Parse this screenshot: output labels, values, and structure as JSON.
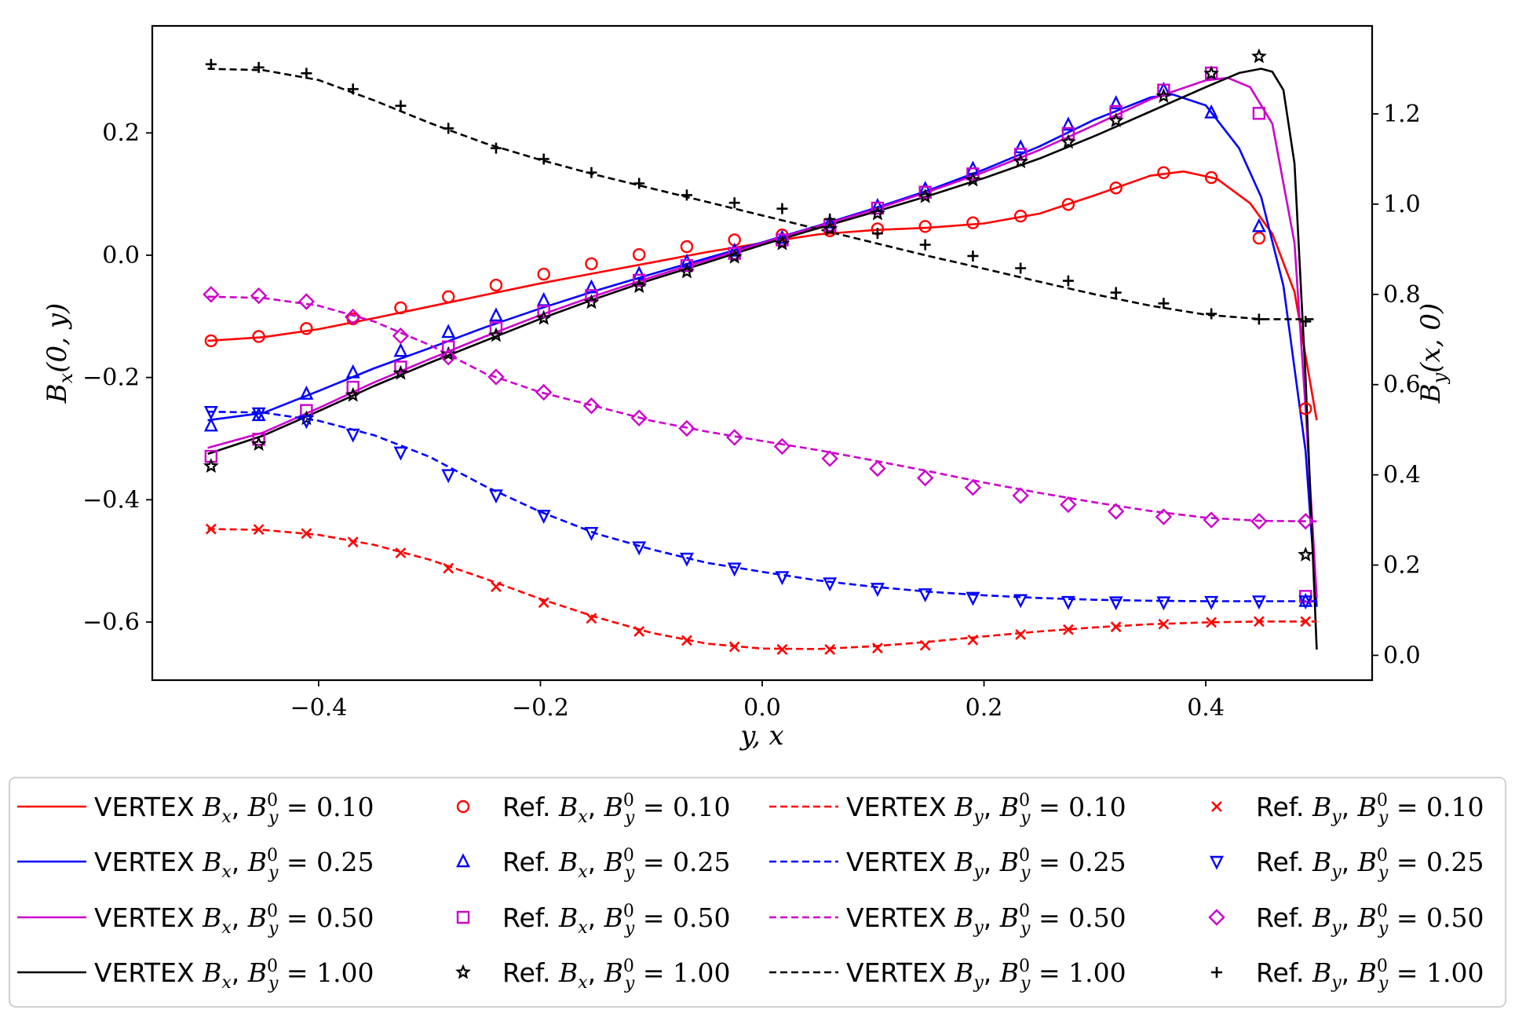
{
  "chart_data": {
    "type": "line",
    "xlabel": "y, x",
    "ylabel_left": "B_x(0, y)",
    "ylabel_right": "B_y(x, 0)",
    "xlim": [
      -0.55,
      0.55
    ],
    "ylim_left": [
      -0.695,
      0.375
    ],
    "ylim_right": [
      -0.055,
      1.395
    ],
    "xticks": [
      -0.4,
      -0.2,
      0.0,
      0.2,
      0.4
    ],
    "xtick_labels": [
      "−0.4",
      "−0.2",
      "0.0",
      "0.2",
      "0.4"
    ],
    "yticks_left": [
      -0.6,
      -0.4,
      -0.2,
      0.0,
      0.2
    ],
    "ytick_labels_left": [
      "−0.6",
      "−0.4",
      "−0.2",
      "0.0",
      "0.2"
    ],
    "yticks_right": [
      0.0,
      0.2,
      0.4,
      0.6,
      0.8,
      1.0,
      1.2
    ],
    "ytick_labels_right": [
      "0.0",
      "0.2",
      "0.4",
      "0.6",
      "0.8",
      "1.0",
      "1.2"
    ],
    "legend_position": "bottom",
    "ref_x": [
      -0.497,
      -0.454,
      -0.411,
      -0.369,
      -0.326,
      -0.283,
      -0.24,
      -0.197,
      -0.154,
      -0.111,
      -0.068,
      -0.025,
      0.018,
      0.061,
      0.104,
      0.147,
      0.19,
      0.233,
      0.276,
      0.319,
      0.362,
      0.405,
      0.448,
      0.49
    ],
    "series": [
      {
        "name": "VERTEX B_x, B_y^0 = 0.10",
        "axis": "left",
        "style": "solid",
        "color": "#ff0000",
        "x": [
          -0.5,
          -0.45,
          -0.4,
          -0.35,
          -0.3,
          -0.25,
          -0.2,
          -0.15,
          -0.1,
          -0.05,
          0.0,
          0.05,
          0.1,
          0.15,
          0.2,
          0.25,
          0.3,
          0.35,
          0.38,
          0.41,
          0.44,
          0.46,
          0.48,
          0.5
        ],
        "y": [
          -0.14,
          -0.134,
          -0.121,
          -0.103,
          -0.084,
          -0.065,
          -0.046,
          -0.029,
          -0.012,
          0.005,
          0.02,
          0.034,
          0.041,
          0.045,
          0.052,
          0.068,
          0.098,
          0.13,
          0.137,
          0.125,
          0.085,
          0.035,
          -0.06,
          -0.27
        ]
      },
      {
        "name": "VERTEX B_x, B_y^0 = 0.25",
        "axis": "left",
        "style": "solid",
        "color": "#0000ff",
        "x": [
          -0.5,
          -0.45,
          -0.4,
          -0.35,
          -0.3,
          -0.25,
          -0.2,
          -0.15,
          -0.1,
          -0.05,
          0.0,
          0.05,
          0.1,
          0.15,
          0.2,
          0.25,
          0.3,
          0.35,
          0.37,
          0.4,
          0.43,
          0.45,
          0.47,
          0.49,
          0.5
        ],
        "y": [
          -0.27,
          -0.258,
          -0.222,
          -0.185,
          -0.152,
          -0.118,
          -0.087,
          -0.058,
          -0.031,
          -0.005,
          0.021,
          0.048,
          0.076,
          0.106,
          0.14,
          0.178,
          0.222,
          0.258,
          0.263,
          0.245,
          0.175,
          0.095,
          -0.05,
          -0.32,
          -0.575
        ]
      },
      {
        "name": "VERTEX B_x, B_y^0 = 0.50",
        "axis": "left",
        "style": "solid",
        "color": "#cc00cc",
        "x": [
          -0.5,
          -0.45,
          -0.4,
          -0.35,
          -0.3,
          -0.25,
          -0.2,
          -0.15,
          -0.1,
          -0.05,
          0.0,
          0.05,
          0.1,
          0.15,
          0.2,
          0.25,
          0.3,
          0.35,
          0.4,
          0.42,
          0.44,
          0.46,
          0.48,
          0.49,
          0.5
        ],
        "y": [
          -0.315,
          -0.29,
          -0.25,
          -0.208,
          -0.17,
          -0.133,
          -0.098,
          -0.066,
          -0.036,
          -0.008,
          0.02,
          0.047,
          0.074,
          0.104,
          0.136,
          0.172,
          0.213,
          0.255,
          0.286,
          0.29,
          0.275,
          0.215,
          0.02,
          -0.25,
          -0.56
        ]
      },
      {
        "name": "VERTEX B_x, B_y^0 = 1.00",
        "axis": "left",
        "style": "solid",
        "color": "#000000",
        "x": [
          -0.5,
          -0.45,
          -0.4,
          -0.35,
          -0.3,
          -0.25,
          -0.2,
          -0.15,
          -0.1,
          -0.05,
          0.0,
          0.05,
          0.1,
          0.15,
          0.2,
          0.25,
          0.3,
          0.35,
          0.4,
          0.43,
          0.45,
          0.46,
          0.47,
          0.48,
          0.49,
          0.5
        ],
        "y": [
          -0.325,
          -0.295,
          -0.255,
          -0.214,
          -0.176,
          -0.14,
          -0.104,
          -0.071,
          -0.04,
          -0.012,
          0.017,
          0.044,
          0.07,
          0.097,
          0.126,
          0.158,
          0.195,
          0.235,
          0.275,
          0.298,
          0.305,
          0.3,
          0.27,
          0.15,
          -0.2,
          -0.645
        ]
      },
      {
        "name": "Ref. B_x, B_y^0 = 0.10",
        "axis": "left",
        "style": "marker",
        "marker": "circle",
        "color": "#ff0000",
        "y": [
          -0.14,
          -0.133,
          -0.12,
          -0.104,
          -0.086,
          -0.068,
          -0.049,
          -0.031,
          -0.014,
          0.001,
          0.014,
          0.025,
          0.033,
          0.04,
          0.043,
          0.047,
          0.053,
          0.064,
          0.083,
          0.11,
          0.135,
          0.127,
          0.028,
          -0.251
        ]
      },
      {
        "name": "Ref. B_x, B_y^0 = 0.25",
        "axis": "left",
        "style": "marker",
        "marker": "triangle-up",
        "color": "#0000ff",
        "y": [
          -0.279,
          -0.262,
          -0.227,
          -0.192,
          -0.157,
          -0.126,
          -0.099,
          -0.074,
          -0.053,
          -0.031,
          -0.011,
          0.007,
          0.028,
          0.053,
          0.08,
          0.108,
          0.141,
          0.176,
          0.213,
          0.248,
          0.27,
          0.233,
          0.047,
          -0.566
        ]
      },
      {
        "name": "Ref. B_x, B_y^0 = 0.50",
        "axis": "left",
        "style": "marker",
        "marker": "square",
        "color": "#cc00cc",
        "y": [
          -0.329,
          -0.301,
          -0.254,
          -0.216,
          -0.183,
          -0.15,
          -0.119,
          -0.092,
          -0.066,
          -0.041,
          -0.017,
          0.003,
          0.025,
          0.049,
          0.077,
          0.103,
          0.133,
          0.165,
          0.199,
          0.235,
          0.27,
          0.298,
          0.232,
          -0.558
        ]
      },
      {
        "name": "Ref. B_x, B_y^0 = 1.00",
        "axis": "left",
        "style": "marker",
        "marker": "star",
        "color": "#000000",
        "y": [
          -0.345,
          -0.309,
          -0.267,
          -0.229,
          -0.193,
          -0.162,
          -0.131,
          -0.103,
          -0.077,
          -0.051,
          -0.027,
          -0.003,
          0.019,
          0.043,
          0.068,
          0.096,
          0.123,
          0.153,
          0.185,
          0.22,
          0.26,
          0.297,
          0.325,
          -0.49
        ]
      },
      {
        "name": "VERTEX B_y, B_y^0 = 0.10",
        "axis": "right",
        "style": "dashed",
        "color": "#ff0000",
        "x": [
          -0.5,
          -0.45,
          -0.4,
          -0.35,
          -0.3,
          -0.25,
          -0.2,
          -0.15,
          -0.1,
          -0.05,
          0.0,
          0.05,
          0.1,
          0.15,
          0.2,
          0.25,
          0.3,
          0.35,
          0.4,
          0.45,
          0.5
        ],
        "y": [
          0.28,
          0.278,
          0.267,
          0.245,
          0.212,
          0.17,
          0.125,
          0.085,
          0.05,
          0.026,
          0.015,
          0.014,
          0.02,
          0.03,
          0.042,
          0.053,
          0.062,
          0.069,
          0.073,
          0.075,
          0.075
        ]
      },
      {
        "name": "VERTEX B_y, B_y^0 = 0.25",
        "axis": "right",
        "style": "dashed",
        "color": "#0000ff",
        "x": [
          -0.5,
          -0.45,
          -0.4,
          -0.35,
          -0.3,
          -0.25,
          -0.2,
          -0.15,
          -0.1,
          -0.05,
          0.0,
          0.05,
          0.1,
          0.15,
          0.2,
          0.25,
          0.3,
          0.35,
          0.4,
          0.45,
          0.5
        ],
        "y": [
          0.54,
          0.538,
          0.52,
          0.488,
          0.44,
          0.375,
          0.318,
          0.27,
          0.235,
          0.205,
          0.185,
          0.166,
          0.152,
          0.141,
          0.133,
          0.127,
          0.123,
          0.121,
          0.12,
          0.12,
          0.12
        ]
      },
      {
        "name": "VERTEX B_y, B_y^0 = 0.50",
        "axis": "right",
        "style": "dashed",
        "color": "#cc00cc",
        "x": [
          -0.5,
          -0.45,
          -0.4,
          -0.35,
          -0.3,
          -0.25,
          -0.2,
          -0.15,
          -0.1,
          -0.05,
          0.0,
          0.05,
          0.1,
          0.15,
          0.2,
          0.25,
          0.3,
          0.35,
          0.4,
          0.45,
          0.5
        ],
        "y": [
          0.795,
          0.792,
          0.775,
          0.74,
          0.688,
          0.625,
          0.583,
          0.552,
          0.52,
          0.496,
          0.475,
          0.455,
          0.432,
          0.408,
          0.383,
          0.36,
          0.339,
          0.32,
          0.305,
          0.298,
          0.297
        ]
      },
      {
        "name": "VERTEX B_y, B_y^0 = 1.00",
        "axis": "right",
        "style": "dashed",
        "color": "#000000",
        "x": [
          -0.5,
          -0.45,
          -0.4,
          -0.35,
          -0.3,
          -0.25,
          -0.2,
          -0.15,
          -0.1,
          -0.05,
          0.0,
          0.05,
          0.1,
          0.15,
          0.2,
          0.25,
          0.3,
          0.35,
          0.4,
          0.45,
          0.5
        ],
        "y": [
          1.3,
          1.297,
          1.275,
          1.23,
          1.18,
          1.135,
          1.098,
          1.065,
          1.035,
          1.005,
          0.975,
          0.945,
          0.915,
          0.885,
          0.857,
          0.828,
          0.8,
          0.775,
          0.755,
          0.745,
          0.745
        ]
      },
      {
        "name": "Ref. B_y, B_y^0 = 0.10",
        "axis": "right",
        "style": "marker",
        "marker": "x",
        "color": "#ff0000",
        "y": [
          0.28,
          0.279,
          0.27,
          0.251,
          0.227,
          0.193,
          0.152,
          0.117,
          0.082,
          0.053,
          0.033,
          0.019,
          0.013,
          0.013,
          0.016,
          0.022,
          0.034,
          0.046,
          0.057,
          0.063,
          0.069,
          0.073,
          0.075,
          0.075
        ]
      },
      {
        "name": "Ref. B_y, B_y^0 = 0.25",
        "axis": "right",
        "style": "marker",
        "marker": "triangle-down",
        "color": "#0000ff",
        "y": [
          0.54,
          0.537,
          0.52,
          0.49,
          0.45,
          0.4,
          0.355,
          0.31,
          0.272,
          0.24,
          0.215,
          0.193,
          0.174,
          0.16,
          0.148,
          0.136,
          0.128,
          0.123,
          0.119,
          0.118,
          0.118,
          0.119,
          0.12,
          0.12
        ]
      },
      {
        "name": "Ref. B_y, B_y^0 = 0.50",
        "axis": "right",
        "style": "marker",
        "marker": "diamond",
        "color": "#cc00cc",
        "y": [
          0.8,
          0.797,
          0.784,
          0.75,
          0.708,
          0.661,
          0.617,
          0.583,
          0.553,
          0.526,
          0.503,
          0.483,
          0.463,
          0.436,
          0.414,
          0.393,
          0.372,
          0.354,
          0.334,
          0.319,
          0.307,
          0.3,
          0.297,
          0.297
        ]
      },
      {
        "name": "Ref. B_y, B_y^0 = 1.00",
        "axis": "right",
        "style": "marker",
        "marker": "plus",
        "color": "#000000",
        "y": [
          1.31,
          1.303,
          1.29,
          1.255,
          1.218,
          1.168,
          1.124,
          1.1,
          1.07,
          1.046,
          1.02,
          1.003,
          0.99,
          0.967,
          0.935,
          0.91,
          0.885,
          0.858,
          0.83,
          0.804,
          0.78,
          0.757,
          0.745,
          0.74
        ]
      }
    ]
  },
  "legend": {
    "items": [
      {
        "kind": "solid",
        "color": "#ff0000",
        "label_a": "VERTEX",
        "label_var": "B",
        "label_sub": "x",
        "label_b": "= 0.10"
      },
      {
        "kind": "circle",
        "color": "#ff0000",
        "label_a": "Ref.",
        "label_var": "B",
        "label_sub": "x",
        "label_b": "= 0.10"
      },
      {
        "kind": "dashed",
        "color": "#ff0000",
        "label_a": "VERTEX",
        "label_var": "B",
        "label_sub": "y",
        "label_b": "= 0.10"
      },
      {
        "kind": "x",
        "color": "#ff0000",
        "label_a": "Ref.",
        "label_var": "B",
        "label_sub": "y",
        "label_b": "= 0.10"
      },
      {
        "kind": "solid",
        "color": "#0000ff",
        "label_a": "VERTEX",
        "label_var": "B",
        "label_sub": "x",
        "label_b": "= 0.25"
      },
      {
        "kind": "triangle-up",
        "color": "#0000ff",
        "label_a": "Ref.",
        "label_var": "B",
        "label_sub": "x",
        "label_b": "= 0.25"
      },
      {
        "kind": "dashed",
        "color": "#0000ff",
        "label_a": "VERTEX",
        "label_var": "B",
        "label_sub": "y",
        "label_b": "= 0.25"
      },
      {
        "kind": "triangle-down",
        "color": "#0000ff",
        "label_a": "Ref.",
        "label_var": "B",
        "label_sub": "y",
        "label_b": "= 0.25"
      },
      {
        "kind": "solid",
        "color": "#cc00cc",
        "label_a": "VERTEX",
        "label_var": "B",
        "label_sub": "x",
        "label_b": "= 0.50"
      },
      {
        "kind": "square",
        "color": "#cc00cc",
        "label_a": "Ref.",
        "label_var": "B",
        "label_sub": "x",
        "label_b": "= 0.50"
      },
      {
        "kind": "dashed",
        "color": "#cc00cc",
        "label_a": "VERTEX",
        "label_var": "B",
        "label_sub": "y",
        "label_b": "= 0.50"
      },
      {
        "kind": "diamond",
        "color": "#cc00cc",
        "label_a": "Ref.",
        "label_var": "B",
        "label_sub": "y",
        "label_b": "= 0.50"
      },
      {
        "kind": "solid",
        "color": "#000000",
        "label_a": "VERTEX",
        "label_var": "B",
        "label_sub": "x",
        "label_b": "= 1.00"
      },
      {
        "kind": "star",
        "color": "#000000",
        "label_a": "Ref.",
        "label_var": "B",
        "label_sub": "x",
        "label_b": "= 1.00"
      },
      {
        "kind": "dashed",
        "color": "#000000",
        "label_a": "VERTEX",
        "label_var": "B",
        "label_sub": "y",
        "label_b": "= 1.00"
      },
      {
        "kind": "plus",
        "color": "#000000",
        "label_a": "Ref.",
        "label_var": "B",
        "label_sub": "y",
        "label_b": "= 1.00"
      }
    ],
    "param_var": "B",
    "param_sup": "0",
    "param_sub": "y"
  }
}
